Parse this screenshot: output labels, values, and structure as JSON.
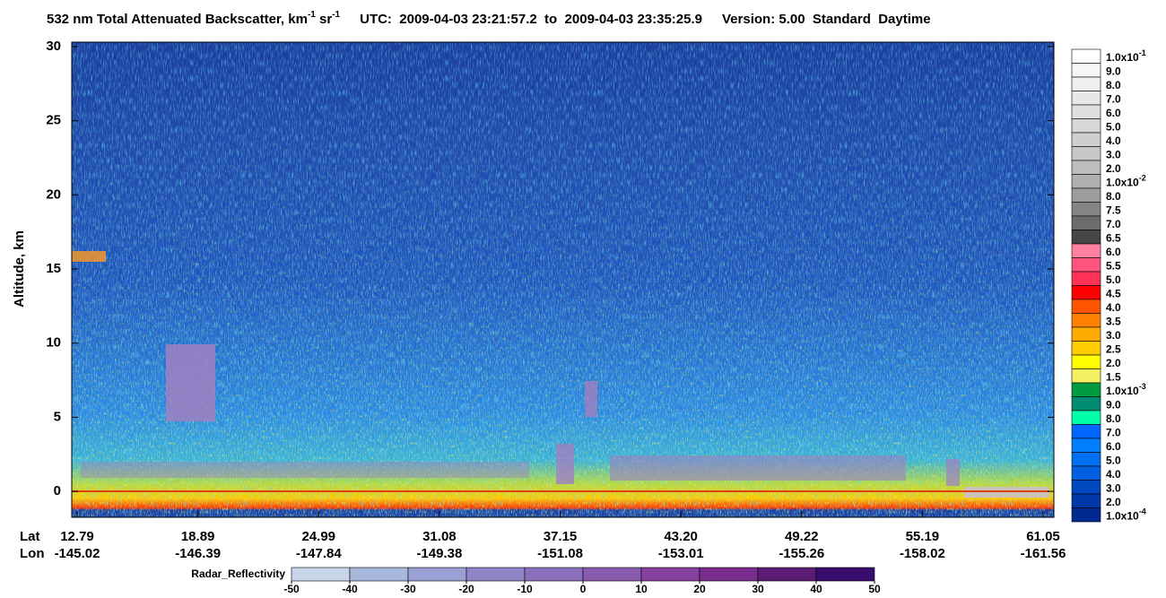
{
  "chart_data": {
    "type": "heatmap",
    "title": {
      "main": "532 nm Total Attenuated Backscatter, km",
      "sup1": "-1",
      "mid": " sr",
      "sup2": "-1",
      "utc": "UTC:  2009-04-03 23:21:57.2  to  2009-04-03 23:35:25.9",
      "version": "Version: 5.00  Standard  Daytime"
    },
    "ylabel": "Altitude, km",
    "ylim": [
      -1.75,
      30.3
    ],
    "yticks": [
      0,
      5,
      10,
      15,
      20,
      25,
      30
    ],
    "lat_label": "Lat",
    "lon_label": "Lon",
    "lat_ticks": [
      12.79,
      18.89,
      24.99,
      31.08,
      37.15,
      {
        "value": 43.2,
        "label": "43.20"
      },
      49.22,
      55.19,
      61.05
    ],
    "lon_ticks": [
      -145.02,
      -146.39,
      -147.84,
      -149.38,
      -151.08,
      -153.01,
      -155.26,
      -158.02,
      -161.56
    ],
    "colorbar": {
      "labels": [
        {
          "text": "1.0x10",
          "sup": "-1"
        },
        "9.0",
        "8.0",
        "7.0",
        "6.0",
        "5.0",
        "4.0",
        "3.0",
        "2.0",
        {
          "text": "1.0x10",
          "sup": "-2"
        },
        "8.0",
        "7.5",
        "7.0",
        "6.5",
        "6.0",
        "5.5",
        "5.0",
        "4.5",
        "4.0",
        "3.5",
        "3.0",
        "2.5",
        "2.0",
        "1.5",
        {
          "text": "1.0x10",
          "sup": "-3"
        },
        "9.0",
        "8.0",
        "7.0",
        "6.0",
        "5.0",
        "4.0",
        "3.0",
        "2.0",
        {
          "text": "1.0x10",
          "sup": "-4"
        }
      ],
      "colors": [
        "#ffffff",
        "#f7f7f7",
        "#efefef",
        "#e7e7e7",
        "#dfdfdf",
        "#d7d7d7",
        "#cfcfcf",
        "#c7c7c7",
        "#bdbdbd",
        "#b0b0b0",
        "#9c9c9c",
        "#858585",
        "#6c6c6c",
        "#454545",
        "#ff80a0",
        "#ff5580",
        "#ff3355",
        "#ff0000",
        "#ff5500",
        "#ff8000",
        "#ffaa00",
        "#ffcc00",
        "#ffff00",
        "#f0f060",
        "#009a40",
        "#008a70",
        "#00ffaa",
        "#0066ff",
        "#0080ff",
        "#0070f0",
        "#0060e0",
        "#0048c0",
        "#0038a8",
        "#002a90"
      ]
    },
    "radar": {
      "label": "Radar_Reflectivity",
      "ticks": [
        -50,
        -40,
        -30,
        -20,
        -10,
        0,
        10,
        20,
        30,
        40,
        50
      ],
      "colors": [
        "#c8d4e8",
        "#a8b8dc",
        "#9aa0d4",
        "#8f86c8",
        "#8a70bc",
        "#8a5aae",
        "#86409e",
        "#782c8c",
        "#5c1c74",
        "#3a0c6e"
      ]
    }
  }
}
